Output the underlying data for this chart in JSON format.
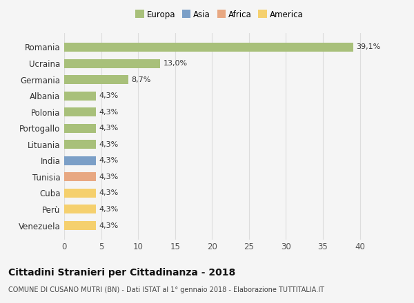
{
  "countries": [
    "Romania",
    "Ucraina",
    "Germania",
    "Albania",
    "Polonia",
    "Portogallo",
    "Lituania",
    "India",
    "Tunisia",
    "Cuba",
    "Perù",
    "Venezuela"
  ],
  "values": [
    39.1,
    13.0,
    8.7,
    4.3,
    4.3,
    4.3,
    4.3,
    4.3,
    4.3,
    4.3,
    4.3,
    4.3
  ],
  "labels": [
    "39,1%",
    "13,0%",
    "8,7%",
    "4,3%",
    "4,3%",
    "4,3%",
    "4,3%",
    "4,3%",
    "4,3%",
    "4,3%",
    "4,3%",
    "4,3%"
  ],
  "colors": [
    "#a8c07a",
    "#a8c07a",
    "#a8c07a",
    "#a8c07a",
    "#a8c07a",
    "#a8c07a",
    "#a8c07a",
    "#7b9fc7",
    "#e8a882",
    "#f5d06e",
    "#f5d06e",
    "#f5d06e"
  ],
  "legend_labels": [
    "Europa",
    "Asia",
    "Africa",
    "America"
  ],
  "legend_colors": [
    "#a8c07a",
    "#7b9fc7",
    "#e8a882",
    "#f5d06e"
  ],
  "title": "Cittadini Stranieri per Cittadinanza - 2018",
  "subtitle": "COMUNE DI CUSANO MUTRI (BN) - Dati ISTAT al 1° gennaio 2018 - Elaborazione TUTTITALIA.IT",
  "xlim": [
    0,
    42
  ],
  "xticks": [
    0,
    5,
    10,
    15,
    20,
    25,
    30,
    35,
    40
  ],
  "background_color": "#f5f5f5",
  "grid_color": "#dddddd"
}
